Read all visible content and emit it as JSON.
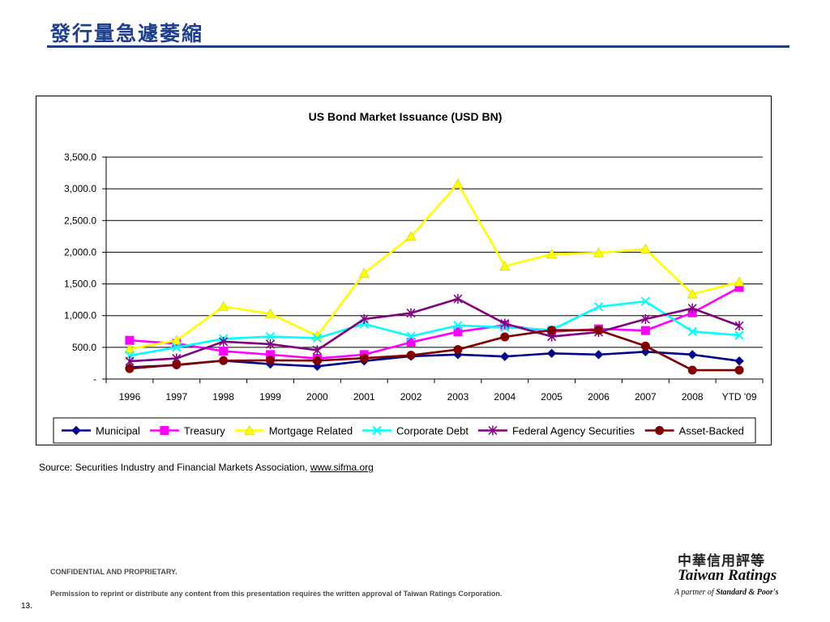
{
  "slide": {
    "title": "發行量急遽萎縮",
    "source_prefix": "Source: Securities Industry and Financial Markets Association, ",
    "source_link": "www.sifma.org",
    "confidential": "CONFIDENTIAL AND PROPRIETARY.",
    "permission": "Permission to reprint or distribute any content from this presentation requires the written approval of Taiwan Ratings Corporation.",
    "page_number": "13."
  },
  "logo": {
    "chinese_name": "中華信用評等",
    "english_name": "Taiwan Ratings",
    "partner_prefix": "A partner of ",
    "partner_name": "Standard & Poor's"
  },
  "chart_data": {
    "type": "line",
    "title": "US Bond Market Issuance (USD BN)",
    "xlabel": "",
    "ylabel": "",
    "ylim": [
      0,
      3500
    ],
    "yticks": [
      0,
      500,
      1000,
      1500,
      2000,
      2500,
      3000,
      3500
    ],
    "ytick_labels": [
      "-",
      "500.0",
      "1,000.0",
      "1,500.0",
      "2,000.0",
      "2,500.0",
      "3,000.0",
      "3,500.0"
    ],
    "grid": "horizontal",
    "legend_position": "bottom",
    "categories": [
      "1996",
      "1997",
      "1998",
      "1999",
      "2000",
      "2001",
      "2002",
      "2003",
      "2004",
      "2005",
      "2006",
      "2007",
      "2008",
      "YTD '09"
    ],
    "series": [
      {
        "name": "Municipal",
        "color": "#00008b",
        "marker": "diamond",
        "values": [
          185,
          220,
          290,
          235,
          200,
          285,
          360,
          385,
          355,
          405,
          385,
          430,
          385,
          285
        ]
      },
      {
        "name": "Treasury",
        "color": "#ff00ff",
        "marker": "square",
        "values": [
          610,
          560,
          440,
          385,
          325,
          385,
          580,
          745,
          850,
          745,
          790,
          765,
          1045,
          1445
        ]
      },
      {
        "name": "Mortgage Related",
        "color": "#ffff00",
        "marker": "triangle",
        "values": [
          475,
          610,
          1145,
          1030,
          680,
          1670,
          2250,
          3080,
          1780,
          1970,
          1990,
          2050,
          1340,
          1530
        ]
      },
      {
        "name": "Corporate Debt",
        "color": "#00ffff",
        "marker": "x",
        "values": [
          370,
          500,
          635,
          670,
          645,
          870,
          675,
          845,
          815,
          775,
          1140,
          1225,
          750,
          690
        ]
      },
      {
        "name": "Federal Agency Securities",
        "color": "#800080",
        "marker": "star",
        "values": [
          280,
          325,
          590,
          550,
          455,
          945,
          1040,
          1265,
          875,
          670,
          740,
          945,
          1115,
          840
        ]
      },
      {
        "name": "Asset-Backed",
        "color": "#800000",
        "marker": "circle",
        "values": [
          165,
          225,
          290,
          295,
          290,
          330,
          375,
          465,
          665,
          770,
          770,
          520,
          140,
          140
        ]
      }
    ]
  }
}
